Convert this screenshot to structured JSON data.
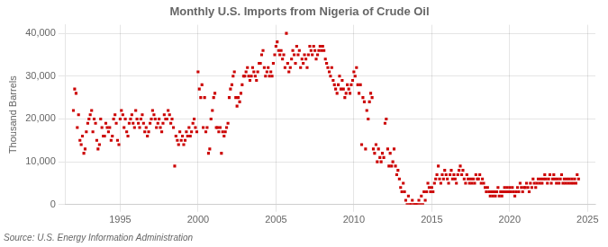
{
  "chart_data": {
    "type": "scatter",
    "title": "Monthly U.S. Imports from Nigeria of Crude Oil",
    "ylabel": "Thousand Barrels",
    "source": "Source: U.S. Energy Information Administration",
    "color": "#cc0000",
    "marker": "square",
    "grid": true,
    "xlim": [
      1991.5,
      2025.5
    ],
    "xticks": [
      1995,
      2000,
      2005,
      2010,
      2015,
      2020,
      2025
    ],
    "ylim": [
      0,
      42000
    ],
    "yticks": [
      0,
      {
        "value": 10000,
        "label": "10,000"
      },
      {
        "value": 20000,
        "label": "20,000"
      },
      {
        "value": 30000,
        "label": "30,000"
      },
      {
        "value": 40000,
        "label": "40,000"
      }
    ],
    "x": [
      1992.0,
      1992.08,
      1992.17,
      1992.25,
      1992.33,
      1992.42,
      1992.5,
      1992.58,
      1992.67,
      1992.75,
      1992.83,
      1992.92,
      1993.0,
      1993.08,
      1993.17,
      1993.25,
      1993.33,
      1993.42,
      1993.5,
      1993.58,
      1993.67,
      1993.75,
      1993.83,
      1993.92,
      1994.0,
      1994.08,
      1994.17,
      1994.25,
      1994.33,
      1994.42,
      1994.5,
      1994.58,
      1994.67,
      1994.75,
      1994.83,
      1994.92,
      1995.0,
      1995.08,
      1995.17,
      1995.25,
      1995.33,
      1995.42,
      1995.5,
      1995.58,
      1995.67,
      1995.75,
      1995.83,
      1995.92,
      1996.0,
      1996.08,
      1996.17,
      1996.25,
      1996.33,
      1996.42,
      1996.5,
      1996.58,
      1996.67,
      1996.75,
      1996.83,
      1996.92,
      1997.0,
      1997.08,
      1997.17,
      1997.25,
      1997.33,
      1997.42,
      1997.5,
      1997.58,
      1997.67,
      1997.75,
      1997.83,
      1997.92,
      1998.0,
      1998.08,
      1998.17,
      1998.25,
      1998.33,
      1998.42,
      1998.5,
      1998.58,
      1998.67,
      1998.75,
      1998.83,
      1998.92,
      1999.0,
      1999.08,
      1999.17,
      1999.25,
      1999.33,
      1999.42,
      1999.5,
      1999.58,
      1999.67,
      1999.75,
      1999.83,
      1999.92,
      2000.0,
      2000.08,
      2000.17,
      2000.25,
      2000.33,
      2000.42,
      2000.5,
      2000.58,
      2000.67,
      2000.75,
      2000.83,
      2000.92,
      2001.0,
      2001.08,
      2001.17,
      2001.25,
      2001.33,
      2001.42,
      2001.5,
      2001.58,
      2001.67,
      2001.75,
      2001.83,
      2001.92,
      2002.0,
      2002.08,
      2002.17,
      2002.25,
      2002.33,
      2002.42,
      2002.5,
      2002.58,
      2002.67,
      2002.75,
      2002.83,
      2002.92,
      2003.0,
      2003.08,
      2003.17,
      2003.25,
      2003.33,
      2003.42,
      2003.5,
      2003.58,
      2003.67,
      2003.75,
      2003.83,
      2003.92,
      2004.0,
      2004.08,
      2004.17,
      2004.25,
      2004.33,
      2004.42,
      2004.5,
      2004.58,
      2004.67,
      2004.75,
      2004.83,
      2004.92,
      2005.0,
      2005.08,
      2005.17,
      2005.25,
      2005.33,
      2005.42,
      2005.5,
      2005.58,
      2005.67,
      2005.75,
      2005.83,
      2005.92,
      2006.0,
      2006.08,
      2006.17,
      2006.25,
      2006.33,
      2006.42,
      2006.5,
      2006.58,
      2006.67,
      2006.75,
      2006.83,
      2006.92,
      2007.0,
      2007.08,
      2007.17,
      2007.25,
      2007.33,
      2007.42,
      2007.5,
      2007.58,
      2007.67,
      2007.75,
      2007.83,
      2007.92,
      2008.0,
      2008.08,
      2008.17,
      2008.25,
      2008.33,
      2008.42,
      2008.5,
      2008.58,
      2008.67,
      2008.75,
      2008.83,
      2008.92,
      2009.0,
      2009.08,
      2009.17,
      2009.25,
      2009.33,
      2009.42,
      2009.5,
      2009.58,
      2009.67,
      2009.75,
      2009.83,
      2009.92,
      2010.0,
      2010.08,
      2010.17,
      2010.25,
      2010.33,
      2010.42,
      2010.5,
      2010.58,
      2010.67,
      2010.75,
      2010.83,
      2010.92,
      2011.0,
      2011.08,
      2011.17,
      2011.25,
      2011.33,
      2011.42,
      2011.5,
      2011.58,
      2011.67,
      2011.75,
      2011.83,
      2011.92,
      2012.0,
      2012.08,
      2012.17,
      2012.25,
      2012.33,
      2012.42,
      2012.5,
      2012.58,
      2012.67,
      2012.75,
      2012.83,
      2012.92,
      2013.0,
      2013.08,
      2013.17,
      2013.25,
      2013.33,
      2013.42,
      2013.5,
      2013.58,
      2013.67,
      2013.75,
      2013.83,
      2013.92,
      2014.0,
      2014.08,
      2014.17,
      2014.25,
      2014.33,
      2014.42,
      2014.5,
      2014.58,
      2014.67,
      2014.75,
      2014.83,
      2014.92,
      2015.0,
      2015.08,
      2015.17,
      2015.25,
      2015.33,
      2015.42,
      2015.5,
      2015.58,
      2015.67,
      2015.75,
      2015.83,
      2015.92,
      2016.0,
      2016.08,
      2016.17,
      2016.25,
      2016.33,
      2016.42,
      2016.5,
      2016.58,
      2016.67,
      2016.75,
      2016.83,
      2016.92,
      2017.0,
      2017.08,
      2017.17,
      2017.25,
      2017.33,
      2017.42,
      2017.5,
      2017.58,
      2017.67,
      2017.75,
      2017.83,
      2017.92,
      2018.0,
      2018.08,
      2018.17,
      2018.25,
      2018.33,
      2018.42,
      2018.5,
      2018.58,
      2018.67,
      2018.75,
      2018.83,
      2018.92,
      2019.0,
      2019.08,
      2019.17,
      2019.25,
      2019.33,
      2019.42,
      2019.5,
      2019.58,
      2019.67,
      2019.75,
      2019.83,
      2019.92,
      2020.0,
      2020.08,
      2020.17,
      2020.25,
      2020.33,
      2020.42,
      2020.5,
      2020.58,
      2020.67,
      2020.75,
      2020.83,
      2020.92,
      2021.0,
      2021.08,
      2021.17,
      2021.25,
      2021.33,
      2021.42,
      2021.5,
      2021.58,
      2021.67,
      2021.75,
      2021.83,
      2021.92,
      2022.0,
      2022.08,
      2022.17,
      2022.25,
      2022.33,
      2022.42,
      2022.5,
      2022.58,
      2022.67,
      2022.75,
      2022.83,
      2022.92,
      2023.0,
      2023.08,
      2023.17,
      2023.25,
      2023.33,
      2023.42,
      2023.5,
      2023.58,
      2023.67,
      2023.75,
      2023.83,
      2023.92,
      2024.0,
      2024.08,
      2024.17,
      2024.25,
      2024.33,
      2024.42
    ],
    "values": [
      22000,
      27000,
      26000,
      18000,
      21000,
      15000,
      14000,
      16000,
      12000,
      13000,
      17000,
      19000,
      20000,
      21000,
      22000,
      17000,
      20000,
      19000,
      15000,
      13000,
      14000,
      20000,
      18000,
      16000,
      16000,
      19000,
      18000,
      17000,
      18000,
      15000,
      16000,
      20000,
      21000,
      19000,
      15000,
      14000,
      20000,
      22000,
      21000,
      18000,
      20000,
      17000,
      16000,
      19000,
      20000,
      21000,
      19000,
      18000,
      22000,
      20000,
      19000,
      18000,
      20000,
      21000,
      19000,
      17000,
      18000,
      16000,
      17000,
      19000,
      20000,
      22000,
      21000,
      20000,
      18000,
      19000,
      20000,
      18000,
      17000,
      19000,
      21000,
      20000,
      20000,
      22000,
      21000,
      19000,
      20000,
      18000,
      9000,
      16000,
      15000,
      14000,
      17000,
      15000,
      16000,
      14000,
      15000,
      17000,
      16000,
      18000,
      16000,
      17000,
      19000,
      20000,
      18000,
      17000,
      31000,
      27000,
      25000,
      28000,
      18000,
      25000,
      17000,
      18000,
      12000,
      13000,
      20000,
      22000,
      25000,
      26000,
      18000,
      18000,
      17000,
      18000,
      12000,
      17000,
      16000,
      17000,
      18000,
      19000,
      25000,
      27000,
      28000,
      30000,
      31000,
      25000,
      23000,
      25000,
      24000,
      26000,
      28000,
      30000,
      30000,
      31000,
      32000,
      30000,
      29000,
      30000,
      32000,
      31000,
      30000,
      29000,
      31000,
      33000,
      33000,
      35000,
      36000,
      32000,
      30000,
      31000,
      32000,
      30000,
      31000,
      30000,
      33000,
      35000,
      37000,
      38000,
      36000,
      35000,
      36000,
      34000,
      35000,
      32000,
      40000,
      33000,
      31000,
      32000,
      34000,
      36000,
      35000,
      33000,
      37000,
      35000,
      36000,
      32000,
      34000,
      33000,
      35000,
      34000,
      32000,
      35000,
      37000,
      36000,
      35000,
      37000,
      36000,
      34000,
      35000,
      36000,
      37000,
      36000,
      37000,
      36000,
      34000,
      33000,
      32000,
      31000,
      30000,
      32000,
      29000,
      28000,
      27000,
      26000,
      28000,
      30000,
      27000,
      29000,
      27000,
      25000,
      26000,
      28000,
      27000,
      26000,
      28000,
      29000,
      31000,
      30000,
      32000,
      28000,
      26000,
      28000,
      14000,
      25000,
      24000,
      13000,
      22000,
      20000,
      24000,
      26000,
      25000,
      13000,
      12000,
      14000,
      10000,
      13000,
      11000,
      10000,
      12000,
      11000,
      19000,
      20000,
      13000,
      9000,
      12000,
      9000,
      10000,
      13000,
      9000,
      7000,
      8000,
      6000,
      4000,
      3000,
      5000,
      3000,
      1000,
      0,
      2000,
      0,
      0,
      1000,
      0,
      0,
      0,
      0,
      1000,
      0,
      2000,
      0,
      3000,
      1000,
      3000,
      5000,
      4000,
      3000,
      4000,
      3000,
      5000,
      6000,
      7000,
      9000,
      6000,
      5000,
      7000,
      6000,
      8000,
      7000,
      6000,
      5000,
      7000,
      8000,
      6000,
      7000,
      6000,
      5000,
      7000,
      8000,
      9000,
      7000,
      8000,
      6000,
      5000,
      7000,
      6000,
      5000,
      6000,
      5000,
      6000,
      5000,
      7000,
      6000,
      6000,
      7000,
      5000,
      6000,
      5000,
      4000,
      3000,
      4000,
      3000,
      2000,
      3000,
      2000,
      3000,
      2000,
      3000,
      4000,
      2000,
      3000,
      2000,
      3000,
      4000,
      3000,
      4000,
      3000,
      4000,
      3000,
      4000,
      3000,
      2000,
      3000,
      4000,
      3000,
      5000,
      4000,
      3000,
      4000,
      4000,
      5000,
      4000,
      3000,
      5000,
      4000,
      6000,
      5000,
      4000,
      5000,
      6000,
      5000,
      6000,
      5000,
      6000,
      7000,
      6000,
      5000,
      6000,
      7000,
      5000,
      6000,
      7000,
      6000,
      5000,
      6000,
      5000,
      6000,
      7000,
      5000,
      6000,
      5000,
      6000,
      5000,
      6000,
      5000,
      6000,
      5000,
      6000,
      5000,
      7000,
      6000
    ]
  }
}
